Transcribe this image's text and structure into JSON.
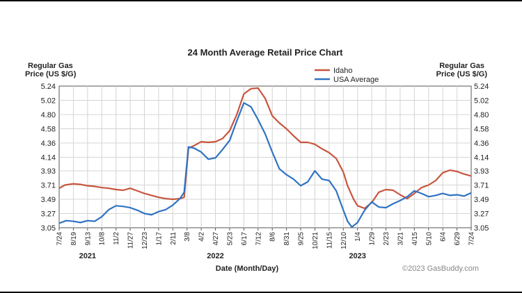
{
  "chart_data": {
    "type": "line",
    "title": "24 Month Average Retail Price Chart",
    "ylabel_left": [
      "Regular Gas",
      "Price (US $/G)"
    ],
    "ylabel_right": [
      "Regular Gas",
      "Price (US $/G)"
    ],
    "xlabel": "Date (Month/Day)",
    "credit": "©2023 GasBuddy.com",
    "ylim": [
      3.05,
      5.24
    ],
    "yticks": [
      "5.24",
      "5.02",
      "4.80",
      "4.58",
      "4.36",
      "4.14",
      "3.93",
      "3.71",
      "3.49",
      "3.27",
      "3.05"
    ],
    "xticks": [
      "7/24",
      "8/19",
      "9/13",
      "10/8",
      "11/2",
      "11/27",
      "12/23",
      "1/17",
      "2/11",
      "3/8",
      "4/2",
      "4/27",
      "5/23",
      "6/17",
      "7/12",
      "8/6",
      "8/31",
      "9/25",
      "10/21",
      "11/15",
      "12/10",
      "1/4",
      "1/29",
      "2/23",
      "3/21",
      "4/15",
      "5/10",
      "6/4",
      "6/29",
      "7/24"
    ],
    "years": [
      {
        "label": "2021",
        "tick_index": 2
      },
      {
        "label": "2022",
        "tick_index": 11
      },
      {
        "label": "2023",
        "tick_index": 21
      }
    ],
    "grid": true,
    "legend_position": "top-center",
    "series": [
      {
        "name": "Idaho",
        "color": "#c8553d",
        "points": [
          [
            0,
            3.66
          ],
          [
            0.4,
            3.71
          ],
          [
            1,
            3.73
          ],
          [
            1.5,
            3.72
          ],
          [
            2,
            3.7
          ],
          [
            2.5,
            3.69
          ],
          [
            3,
            3.67
          ],
          [
            3.5,
            3.66
          ],
          [
            4,
            3.64
          ],
          [
            4.5,
            3.63
          ],
          [
            5,
            3.66
          ],
          [
            5.5,
            3.62
          ],
          [
            6,
            3.58
          ],
          [
            6.5,
            3.55
          ],
          [
            7,
            3.52
          ],
          [
            7.5,
            3.5
          ],
          [
            8,
            3.49
          ],
          [
            8.5,
            3.5
          ],
          [
            8.8,
            3.52
          ],
          [
            9.1,
            4.28
          ],
          [
            9.5,
            4.32
          ],
          [
            10,
            4.38
          ],
          [
            10.5,
            4.37
          ],
          [
            11,
            4.38
          ],
          [
            11.5,
            4.43
          ],
          [
            12,
            4.55
          ],
          [
            12.5,
            4.8
          ],
          [
            13,
            5.12
          ],
          [
            13.5,
            5.2
          ],
          [
            14,
            5.21
          ],
          [
            14.5,
            5.05
          ],
          [
            15,
            4.78
          ],
          [
            15.5,
            4.67
          ],
          [
            16,
            4.58
          ],
          [
            16.5,
            4.47
          ],
          [
            17,
            4.37
          ],
          [
            17.5,
            4.37
          ],
          [
            18,
            4.34
          ],
          [
            18.5,
            4.27
          ],
          [
            19,
            4.21
          ],
          [
            19.5,
            4.12
          ],
          [
            20,
            3.91
          ],
          [
            20.3,
            3.7
          ],
          [
            20.7,
            3.5
          ],
          [
            21,
            3.39
          ],
          [
            21.5,
            3.35
          ],
          [
            22,
            3.44
          ],
          [
            22.5,
            3.6
          ],
          [
            23,
            3.64
          ],
          [
            23.5,
            3.63
          ],
          [
            24,
            3.56
          ],
          [
            24.5,
            3.5
          ],
          [
            25,
            3.58
          ],
          [
            25.5,
            3.67
          ],
          [
            26,
            3.71
          ],
          [
            26.5,
            3.78
          ],
          [
            27,
            3.9
          ],
          [
            27.5,
            3.94
          ],
          [
            28,
            3.92
          ],
          [
            28.5,
            3.88
          ],
          [
            29,
            3.85
          ]
        ]
      },
      {
        "name": "USA Average",
        "color": "#2f73c2",
        "points": [
          [
            0,
            3.12
          ],
          [
            0.5,
            3.16
          ],
          [
            1,
            3.15
          ],
          [
            1.5,
            3.13
          ],
          [
            2,
            3.16
          ],
          [
            2.5,
            3.15
          ],
          [
            3,
            3.22
          ],
          [
            3.5,
            3.33
          ],
          [
            4,
            3.39
          ],
          [
            4.5,
            3.38
          ],
          [
            5,
            3.36
          ],
          [
            5.5,
            3.32
          ],
          [
            6,
            3.27
          ],
          [
            6.5,
            3.25
          ],
          [
            7,
            3.3
          ],
          [
            7.5,
            3.33
          ],
          [
            8,
            3.4
          ],
          [
            8.5,
            3.5
          ],
          [
            8.8,
            3.6
          ],
          [
            9.1,
            4.3
          ],
          [
            9.5,
            4.28
          ],
          [
            10,
            4.22
          ],
          [
            10.5,
            4.11
          ],
          [
            11,
            4.13
          ],
          [
            11.5,
            4.26
          ],
          [
            12,
            4.4
          ],
          [
            12.5,
            4.7
          ],
          [
            13,
            4.98
          ],
          [
            13.5,
            4.92
          ],
          [
            14,
            4.72
          ],
          [
            14.5,
            4.5
          ],
          [
            15,
            4.22
          ],
          [
            15.5,
            3.96
          ],
          [
            16,
            3.87
          ],
          [
            16.5,
            3.8
          ],
          [
            17,
            3.7
          ],
          [
            17.5,
            3.76
          ],
          [
            18,
            3.93
          ],
          [
            18.5,
            3.8
          ],
          [
            19,
            3.78
          ],
          [
            19.5,
            3.62
          ],
          [
            20,
            3.32
          ],
          [
            20.3,
            3.15
          ],
          [
            20.6,
            3.06
          ],
          [
            21,
            3.13
          ],
          [
            21.5,
            3.32
          ],
          [
            22,
            3.45
          ],
          [
            22.5,
            3.37
          ],
          [
            23,
            3.36
          ],
          [
            23.5,
            3.42
          ],
          [
            24,
            3.47
          ],
          [
            24.5,
            3.53
          ],
          [
            25,
            3.62
          ],
          [
            25.5,
            3.58
          ],
          [
            26,
            3.53
          ],
          [
            26.5,
            3.55
          ],
          [
            27,
            3.58
          ],
          [
            27.5,
            3.55
          ],
          [
            28,
            3.56
          ],
          [
            28.5,
            3.54
          ],
          [
            29,
            3.59
          ]
        ]
      }
    ]
  }
}
